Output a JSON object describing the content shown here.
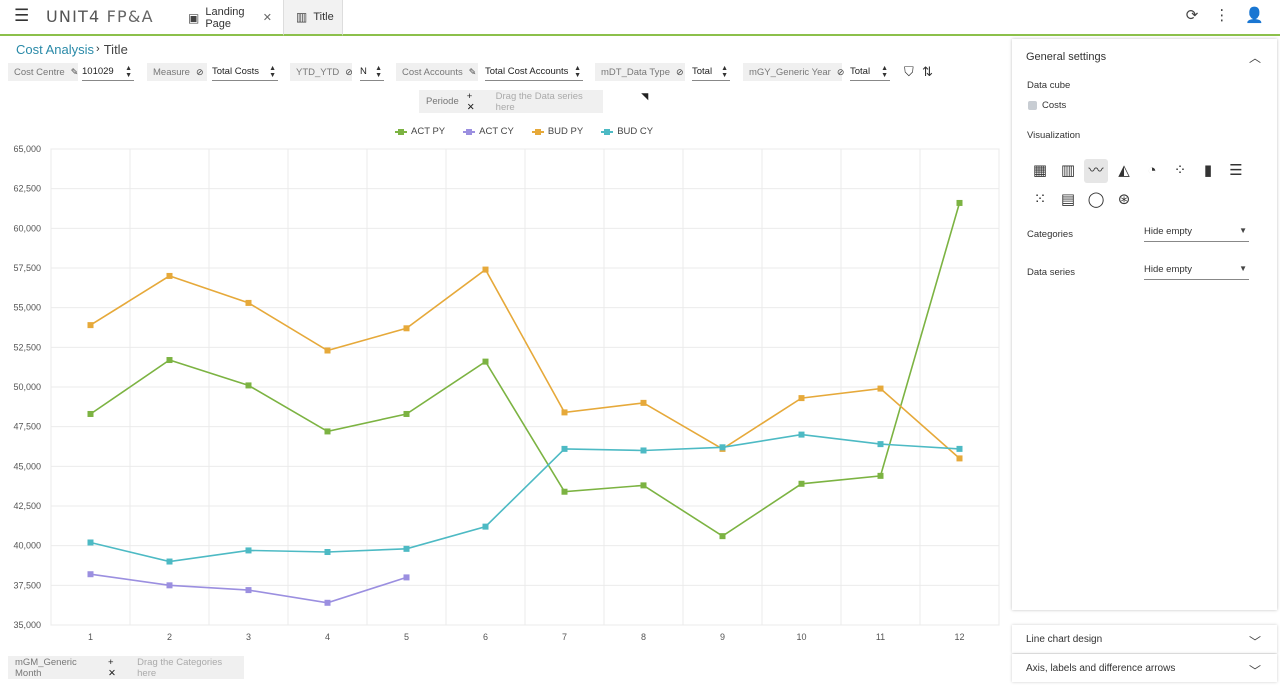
{
  "app": {
    "logo": "UNIT4",
    "product": "FP&A"
  },
  "tabs": [
    {
      "label": "Landing Page",
      "active": false,
      "closable": true
    },
    {
      "label": "Title",
      "active": true,
      "closable": false
    }
  ],
  "breadcrumb": {
    "parent": "Cost Analysis",
    "current": "Title"
  },
  "filters": [
    {
      "label": "Cost Centre",
      "icon": "pencil-icon",
      "value": "101029"
    },
    {
      "label": "Measure",
      "icon": "eye-slash-icon",
      "value": "Total Costs"
    },
    {
      "label": "YTD_YTD",
      "icon": "eye-slash-icon",
      "value": "N"
    },
    {
      "label": "Cost Accounts",
      "icon": "pencil-icon",
      "value": "Total Cost Accounts"
    },
    {
      "label": "mDT_Data Type",
      "icon": "eye-slash-icon",
      "value": "Total"
    },
    {
      "label": "mGY_Generic Year",
      "icon": "eye-slash-icon",
      "value": "Total"
    }
  ],
  "series_zone": {
    "label": "Periode",
    "drag": "Drag the Data series here"
  },
  "category_zone": {
    "label": "mGM_Generic Month",
    "drag": "Drag the Categories here"
  },
  "chart_data": {
    "type": "line",
    "x": [
      "1",
      "2",
      "3",
      "4",
      "5",
      "6",
      "7",
      "8",
      "9",
      "10",
      "11",
      "12"
    ],
    "ylim": [
      35000,
      65000
    ],
    "yticks": [
      "35,000",
      "37,500",
      "40,000",
      "42,500",
      "45,000",
      "47,500",
      "50,000",
      "52,500",
      "55,000",
      "57,500",
      "60,000",
      "62,500",
      "65,000"
    ],
    "series": [
      {
        "name": "ACT PY",
        "color": "#7cb342",
        "values": [
          48300,
          51700,
          50100,
          47200,
          48300,
          51600,
          43400,
          43800,
          40600,
          43900,
          44400,
          61600
        ]
      },
      {
        "name": "ACT CY",
        "color": "#9b8fe0",
        "values": [
          38200,
          37500,
          37200,
          36400,
          38000,
          null,
          null,
          null,
          null,
          null,
          null,
          null
        ]
      },
      {
        "name": "BUD PY",
        "color": "#e6a93a",
        "values": [
          53900,
          57000,
          55300,
          52300,
          53700,
          57400,
          48400,
          49000,
          46100,
          49300,
          49900,
          45500
        ]
      },
      {
        "name": "BUD CY",
        "color": "#4dbac4",
        "values": [
          40200,
          39000,
          39700,
          39600,
          39800,
          41200,
          46100,
          46000,
          46200,
          47000,
          46400,
          46100
        ]
      }
    ]
  },
  "panel": {
    "title": "General settings",
    "data_cube_label": "Data cube",
    "data_cube_value": "Costs",
    "visualization_label": "Visualization",
    "categories_label": "Categories",
    "categories_value": "Hide empty",
    "data_series_label": "Data series",
    "data_series_value": "Hide empty",
    "accordions": [
      "Line chart design",
      "Axis, labels and difference arrows"
    ]
  }
}
